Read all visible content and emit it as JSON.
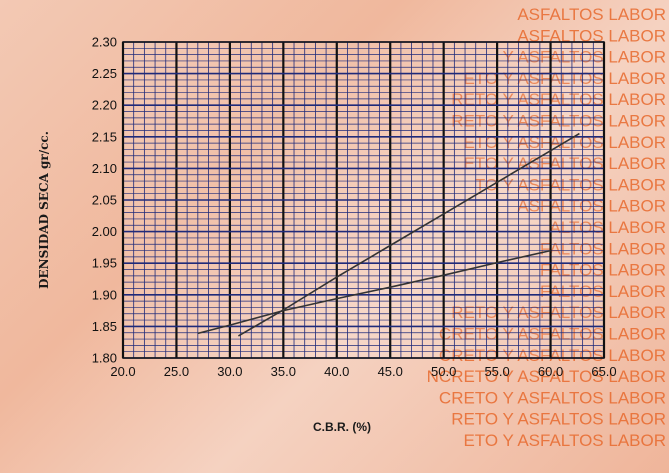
{
  "watermark": {
    "lines": [
      "ASFALTOS LABOR",
      "ASFALTOS LABOR",
      "Y ASFALTOS LABOR",
      "ETO Y ASFALTOS LABOR",
      "RETO Y ASFALTOS LABOR",
      "RETO Y ASFALTOS LABOR",
      "ETO Y ASFALTOS LABOR",
      "ETO Y ASFALTOS LABOR",
      "TO Y ASFALTOS LABOR",
      "ASFALTOS LABOR",
      "ALTOS LABOR",
      "FALTOS LABOR",
      "FALTOS LABOR",
      "FALTOS LABOR",
      "RETO Y ASFALTOS LABOR",
      "CRETO Y ASFALTOS LABOR",
      "CRETO Y ASFALTOS LABOR",
      "NCRETO Y ASFALTOS LABOR",
      "CRETO Y ASFALTOS LABOR",
      "RETO Y ASFALTOS LABOR",
      "ETO Y ASFALTOS LABOR"
    ],
    "color": "#e86a2e"
  },
  "chart_data": {
    "type": "line",
    "title": "",
    "xlabel": "C.B.R. (%)",
    "ylabel": "DENSIDAD SECA gr/cc.",
    "xlim": [
      20.0,
      65.0
    ],
    "ylim": [
      1.8,
      2.3
    ],
    "x_ticks": [
      "20.0",
      "25.0",
      "30.0",
      "35.0",
      "40.0",
      "45.0",
      "50.0",
      "55.0",
      "60.0",
      "65.0"
    ],
    "y_ticks": [
      "1.80",
      "1.85",
      "1.90",
      "1.95",
      "2.00",
      "2.05",
      "2.10",
      "2.15",
      "2.20",
      "2.25",
      "2.30"
    ],
    "grid": true,
    "grid_color": "#1f2a7a",
    "line_color": "#333333",
    "series": [
      {
        "x": [
          30.8,
          35.0,
          40.0,
          45.0,
          50.0,
          55.0,
          60.0,
          62.7
        ],
        "y": [
          1.835,
          1.876,
          1.928,
          1.978,
          2.028,
          2.078,
          2.128,
          2.155
        ]
      },
      {
        "x": [
          27.0,
          30.0,
          35.0,
          40.0,
          45.0,
          50.0,
          55.0,
          60.0
        ],
        "y": [
          1.839,
          1.852,
          1.875,
          1.894,
          1.912,
          1.931,
          1.951,
          1.97
        ]
      }
    ]
  }
}
